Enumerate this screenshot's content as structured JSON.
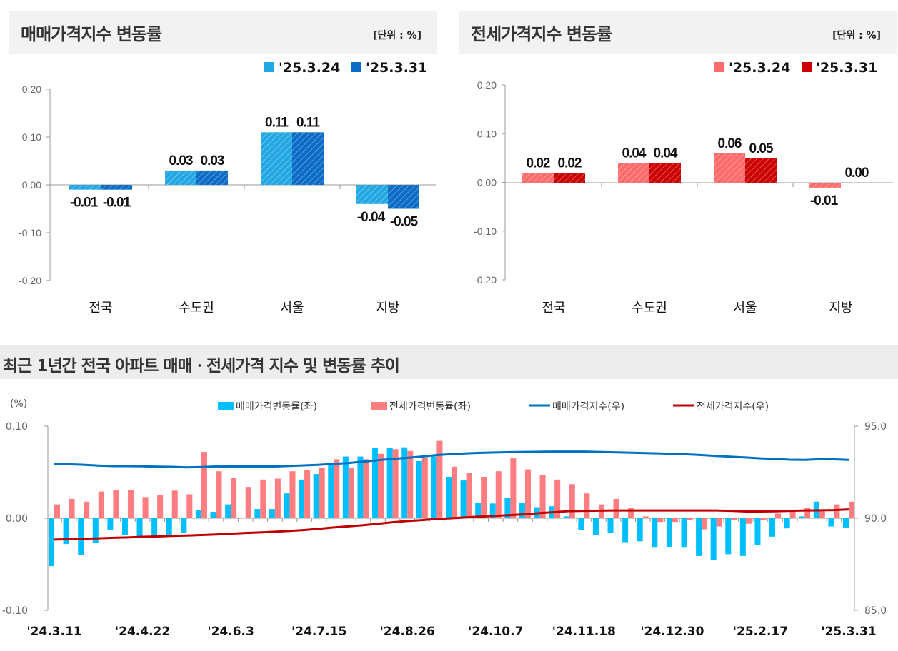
{
  "panels": {
    "sale": {
      "title": "매매가격지수 변동률",
      "unit": "[단위 : %]"
    },
    "jeonse": {
      "title": "전세가격지수 변동률",
      "unit": "[단위 : %]"
    },
    "trend": {
      "title": "최근 1년간 전국 아파트 매매ㆍ전세가격 지수 및 변동률 추이"
    }
  },
  "colors": {
    "sale_prev": "#22a7e3",
    "sale_curr": "#0b6cc6",
    "jeonse_prev": "#ff6b6b",
    "jeonse_curr": "#cc0000",
    "sale_rate": "#00bfff",
    "jeonse_rate": "#ff7c80",
    "sale_index": "#0070c0",
    "jeonse_index": "#c00000"
  },
  "chart_data": [
    {
      "type": "bar",
      "title": "매매가격지수 변동률",
      "categories": [
        "전국",
        "수도권",
        "서울",
        "지방"
      ],
      "series": [
        {
          "name": "'25.3.24",
          "values": [
            -0.01,
            0.03,
            0.11,
            -0.04
          ],
          "labels": [
            "-0.01",
            "0.03",
            "0.11",
            "-0.04"
          ]
        },
        {
          "name": "'25.3.31",
          "values": [
            -0.01,
            0.03,
            0.11,
            -0.05
          ],
          "labels": [
            "-0.01",
            "0.03",
            "0.11",
            "-0.05"
          ]
        }
      ],
      "ylim": [
        -0.2,
        0.2
      ],
      "yticks": [
        "0.20",
        "0.10",
        "0.00",
        "-0.10",
        "-0.20"
      ],
      "legend": "top-right"
    },
    {
      "type": "bar",
      "title": "전세가격지수 변동률",
      "categories": [
        "전국",
        "수도권",
        "서울",
        "지방"
      ],
      "series": [
        {
          "name": "'25.3.24",
          "values": [
            0.02,
            0.04,
            0.06,
            -0.01
          ],
          "labels": [
            "0.02",
            "0.04",
            "0.06",
            "-0.01"
          ]
        },
        {
          "name": "'25.3.31",
          "values": [
            0.02,
            0.04,
            0.05,
            0.0
          ],
          "labels": [
            "0.02",
            "0.04",
            "0.05",
            "0.00"
          ]
        }
      ],
      "ylim": [
        -0.2,
        0.2
      ],
      "yticks": [
        "0.20",
        "0.10",
        "0.00",
        "-0.10",
        "-0.20"
      ],
      "legend": "top-right"
    },
    {
      "type": "bar+line",
      "title": "최근 1년간 전국 아파트 매매ㆍ전세가격 지수 및 변동률 추이",
      "ylabel_left": "(%)",
      "ylim_left": [
        -0.1,
        0.1
      ],
      "yticks_left": [
        "0.10",
        "0.00",
        "-0.10"
      ],
      "ylim_right": [
        85.0,
        95.0
      ],
      "yticks_right": [
        "95.0",
        "90.0",
        "85.0"
      ],
      "x_labels": [
        "'24.3.11",
        "'24.4.22",
        "'24.6.3",
        "'24.7.15",
        "'24.8.26",
        "'24.10.7",
        "'24.11.18",
        "'24.12.30",
        "'25.2.17",
        "'25.3.31"
      ],
      "legend": "top",
      "series": [
        {
          "name": "매매가격변동률(좌)",
          "type": "bar",
          "axis": "left",
          "values": [
            -0.052,
            -0.028,
            -0.04,
            -0.027,
            -0.013,
            -0.018,
            -0.02,
            -0.02,
            -0.02,
            -0.016,
            0.009,
            0.007,
            0.015,
            0.0,
            0.01,
            0.01,
            0.027,
            0.042,
            0.048,
            0.058,
            0.067,
            0.067,
            0.076,
            0.076,
            0.077,
            0.062,
            0.067,
            0.045,
            0.041,
            0.017,
            0.016,
            0.022,
            0.017,
            0.012,
            0.013,
            0.002,
            -0.013,
            -0.018,
            -0.016,
            -0.026,
            -0.025,
            -0.032,
            -0.031,
            -0.032,
            -0.041,
            -0.045,
            -0.039,
            -0.041,
            -0.029,
            -0.02,
            -0.011,
            0.002,
            0.018,
            -0.009,
            -0.01
          ]
        },
        {
          "name": "전세가격변동률(좌)",
          "type": "bar",
          "axis": "left",
          "values": [
            0.015,
            0.021,
            0.018,
            0.029,
            0.031,
            0.031,
            0.023,
            0.025,
            0.03,
            0.026,
            0.072,
            0.051,
            0.044,
            0.034,
            0.042,
            0.043,
            0.051,
            0.052,
            0.055,
            0.064,
            0.055,
            0.064,
            0.07,
            0.075,
            0.073,
            0.066,
            0.084,
            0.056,
            0.049,
            0.045,
            0.051,
            0.065,
            0.053,
            0.047,
            0.042,
            0.037,
            0.027,
            0.015,
            0.021,
            0.011,
            0.002,
            -0.004,
            -0.004,
            -0.002,
            -0.012,
            -0.009,
            -0.002,
            -0.006,
            -0.002,
            0.005,
            0.009,
            0.011,
            0.009,
            0.015,
            0.018
          ]
        },
        {
          "name": "매매가격지수(우)",
          "type": "line",
          "axis": "right",
          "values": [
            92.94,
            92.93,
            92.9,
            92.86,
            92.83,
            92.83,
            92.82,
            92.8,
            92.79,
            92.76,
            92.78,
            92.81,
            92.81,
            92.81,
            92.81,
            92.81,
            92.84,
            92.87,
            92.9,
            92.95,
            93.0,
            93.07,
            93.15,
            93.22,
            93.28,
            93.35,
            93.43,
            93.48,
            93.52,
            93.55,
            93.57,
            93.59,
            93.6,
            93.61,
            93.62,
            93.62,
            93.62,
            93.6,
            93.58,
            93.56,
            93.54,
            93.52,
            93.5,
            93.47,
            93.43,
            93.38,
            93.34,
            93.3,
            93.25,
            93.22,
            93.18,
            93.17,
            93.2,
            93.2,
            93.17
          ]
        },
        {
          "name": "전세가격지수(우)",
          "type": "line",
          "axis": "right",
          "values": [
            88.84,
            88.86,
            88.89,
            88.91,
            88.94,
            88.96,
            88.99,
            89.01,
            89.04,
            89.06,
            89.09,
            89.12,
            89.16,
            89.2,
            89.23,
            89.27,
            89.31,
            89.36,
            89.43,
            89.5,
            89.56,
            89.62,
            89.7,
            89.78,
            89.85,
            89.9,
            89.96,
            90.0,
            90.05,
            90.09,
            90.13,
            90.17,
            90.22,
            90.28,
            90.33,
            90.39,
            90.4,
            90.41,
            90.42,
            90.42,
            90.42,
            90.42,
            90.42,
            90.42,
            90.42,
            90.42,
            90.4,
            90.37,
            90.37,
            90.38,
            90.4,
            90.42,
            90.43,
            90.44,
            90.48
          ]
        }
      ]
    }
  ]
}
